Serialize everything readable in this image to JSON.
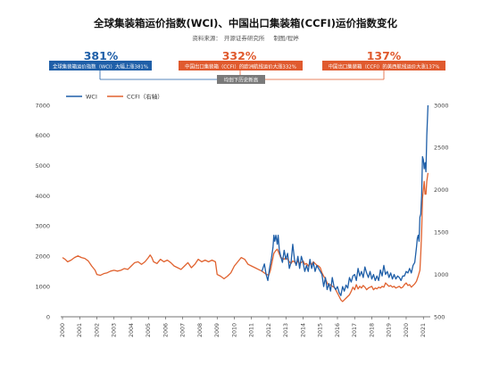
{
  "header": {
    "title": "全球集装箱运价指数(WCI)、中国出口集装箱(CCFI)运价指数变化",
    "source_label": "资料来源：",
    "source_org": "开源证券研究所",
    "author": "制图/程婷"
  },
  "callouts": [
    {
      "pct": "381%",
      "text": "全球集装箱运价指数（WCI）大幅上涨381%",
      "color": "#1f5fa8"
    },
    {
      "pct": "332%",
      "text": "中国出口集装箱（CCFI）的欧洲航线运价大涨332%",
      "color": "#e05a2e"
    },
    {
      "pct": "137%",
      "text": "中国出口集装箱（CCFI）的美西航线运价大涨137%",
      "color": "#e05a2e"
    }
  ],
  "bracket_label": "均创下历史新高",
  "colors": {
    "wci": "#1f5fa8",
    "ccfi": "#e0622f"
  },
  "chart_data": {
    "type": "line",
    "title": "全球集装箱运价指数(WCI)、中国出口集装箱(CCFI)运价指数变化",
    "x_ticks": [
      "2000",
      "2001",
      "2002",
      "2003",
      "2004",
      "2005",
      "2006",
      "2007",
      "2008",
      "2009",
      "2010",
      "2011",
      "2012",
      "2013",
      "2014",
      "2015",
      "2016",
      "2017",
      "2018",
      "2019",
      "2020",
      "2021"
    ],
    "xlim": [
      2000,
      2021.3
    ],
    "y_left": {
      "lim": [
        0,
        7000
      ],
      "ticks": [
        0,
        1000,
        2000,
        3000,
        4000,
        5000,
        6000,
        7000
      ]
    },
    "y_right": {
      "lim": [
        500,
        3000
      ],
      "ticks": [
        500,
        1000,
        1500,
        2000,
        2500,
        3000
      ]
    },
    "legend": {
      "position": "top-left"
    },
    "grid": false,
    "series": [
      {
        "name": "WCI",
        "axis": "left",
        "points": [
          [
            2011.6,
            1500
          ],
          [
            2011.75,
            1750
          ],
          [
            2011.85,
            1400
          ],
          [
            2011.95,
            1200
          ],
          [
            2012.05,
            1600
          ],
          [
            2012.15,
            1900
          ],
          [
            2012.25,
            2300
          ],
          [
            2012.3,
            2700
          ],
          [
            2012.35,
            2500
          ],
          [
            2012.42,
            2700
          ],
          [
            2012.5,
            2400
          ],
          [
            2012.55,
            2700
          ],
          [
            2012.62,
            2200
          ],
          [
            2012.7,
            2000
          ],
          [
            2012.8,
            1800
          ],
          [
            2012.9,
            2200
          ],
          [
            2013.0,
            1900
          ],
          [
            2013.1,
            2100
          ],
          [
            2013.2,
            1600
          ],
          [
            2013.3,
            1800
          ],
          [
            2013.4,
            2400
          ],
          [
            2013.5,
            1900
          ],
          [
            2013.6,
            1700
          ],
          [
            2013.7,
            2000
          ],
          [
            2013.8,
            1600
          ],
          [
            2013.9,
            2000
          ],
          [
            2014.0,
            1800
          ],
          [
            2014.1,
            1500
          ],
          [
            2014.2,
            1700
          ],
          [
            2014.3,
            1500
          ],
          [
            2014.4,
            1900
          ],
          [
            2014.5,
            1600
          ],
          [
            2014.6,
            1800
          ],
          [
            2014.7,
            1500
          ],
          [
            2014.8,
            1700
          ],
          [
            2014.9,
            1600
          ],
          [
            2015.0,
            1500
          ],
          [
            2015.1,
            1400
          ],
          [
            2015.2,
            1000
          ],
          [
            2015.3,
            1300
          ],
          [
            2015.4,
            900
          ],
          [
            2015.5,
            1100
          ],
          [
            2015.6,
            850
          ],
          [
            2015.7,
            1300
          ],
          [
            2015.8,
            1000
          ],
          [
            2015.9,
            900
          ],
          [
            2016.0,
            1000
          ],
          [
            2016.1,
            800
          ],
          [
            2016.2,
            700
          ],
          [
            2016.3,
            1000
          ],
          [
            2016.4,
            850
          ],
          [
            2016.5,
            1050
          ],
          [
            2016.6,
            950
          ],
          [
            2016.7,
            1300
          ],
          [
            2016.8,
            1150
          ],
          [
            2016.9,
            1350
          ],
          [
            2017.0,
            1400
          ],
          [
            2017.1,
            1200
          ],
          [
            2017.2,
            1600
          ],
          [
            2017.3,
            1350
          ],
          [
            2017.4,
            1500
          ],
          [
            2017.5,
            1300
          ],
          [
            2017.6,
            1650
          ],
          [
            2017.7,
            1450
          ],
          [
            2017.8,
            1300
          ],
          [
            2017.9,
            1500
          ],
          [
            2018.0,
            1250
          ],
          [
            2018.1,
            1400
          ],
          [
            2018.2,
            1200
          ],
          [
            2018.3,
            1350
          ],
          [
            2018.4,
            1200
          ],
          [
            2018.5,
            1550
          ],
          [
            2018.6,
            1350
          ],
          [
            2018.7,
            1700
          ],
          [
            2018.8,
            1400
          ],
          [
            2018.9,
            1500
          ],
          [
            2019.0,
            1300
          ],
          [
            2019.1,
            1450
          ],
          [
            2019.2,
            1250
          ],
          [
            2019.3,
            1400
          ],
          [
            2019.4,
            1250
          ],
          [
            2019.5,
            1350
          ],
          [
            2019.6,
            1300
          ],
          [
            2019.7,
            1200
          ],
          [
            2019.8,
            1350
          ],
          [
            2019.9,
            1350
          ],
          [
            2020.0,
            1500
          ],
          [
            2020.1,
            1450
          ],
          [
            2020.2,
            1600
          ],
          [
            2020.3,
            1450
          ],
          [
            2020.4,
            1700
          ],
          [
            2020.5,
            1800
          ],
          [
            2020.6,
            2300
          ],
          [
            2020.65,
            2600
          ],
          [
            2020.7,
            2700
          ],
          [
            2020.75,
            2500
          ],
          [
            2020.8,
            3300
          ],
          [
            2020.85,
            3400
          ],
          [
            2020.9,
            4000
          ],
          [
            2020.95,
            5300
          ],
          [
            2021.0,
            5200
          ],
          [
            2021.05,
            4900
          ],
          [
            2021.1,
            5100
          ],
          [
            2021.15,
            4800
          ],
          [
            2021.2,
            6000
          ],
          [
            2021.27,
            7000
          ]
        ]
      },
      {
        "name": "CCFI（右轴）",
        "axis": "right",
        "points": [
          [
            2000.0,
            1200
          ],
          [
            2000.15,
            1180
          ],
          [
            2000.3,
            1150
          ],
          [
            2000.5,
            1170
          ],
          [
            2000.7,
            1200
          ],
          [
            2000.9,
            1220
          ],
          [
            2001.1,
            1200
          ],
          [
            2001.3,
            1190
          ],
          [
            2001.5,
            1160
          ],
          [
            2001.7,
            1100
          ],
          [
            2001.9,
            1050
          ],
          [
            2002.0,
            1000
          ],
          [
            2002.2,
            990
          ],
          [
            2002.4,
            1010
          ],
          [
            2002.6,
            1020
          ],
          [
            2002.8,
            1040
          ],
          [
            2003.0,
            1050
          ],
          [
            2003.2,
            1040
          ],
          [
            2003.4,
            1050
          ],
          [
            2003.6,
            1070
          ],
          [
            2003.8,
            1060
          ],
          [
            2004.0,
            1100
          ],
          [
            2004.2,
            1140
          ],
          [
            2004.4,
            1150
          ],
          [
            2004.6,
            1120
          ],
          [
            2004.8,
            1150
          ],
          [
            2005.0,
            1200
          ],
          [
            2005.1,
            1230
          ],
          [
            2005.2,
            1200
          ],
          [
            2005.3,
            1150
          ],
          [
            2005.5,
            1130
          ],
          [
            2005.7,
            1180
          ],
          [
            2005.9,
            1150
          ],
          [
            2006.1,
            1170
          ],
          [
            2006.3,
            1140
          ],
          [
            2006.5,
            1100
          ],
          [
            2006.7,
            1080
          ],
          [
            2006.9,
            1060
          ],
          [
            2007.1,
            1100
          ],
          [
            2007.3,
            1140
          ],
          [
            2007.5,
            1080
          ],
          [
            2007.7,
            1120
          ],
          [
            2007.9,
            1180
          ],
          [
            2008.1,
            1150
          ],
          [
            2008.3,
            1170
          ],
          [
            2008.5,
            1150
          ],
          [
            2008.7,
            1170
          ],
          [
            2008.9,
            1150
          ],
          [
            2009.0,
            1000
          ],
          [
            2009.2,
            980
          ],
          [
            2009.4,
            950
          ],
          [
            2009.6,
            980
          ],
          [
            2009.8,
            1020
          ],
          [
            2010.0,
            1100
          ],
          [
            2010.2,
            1150
          ],
          [
            2010.4,
            1200
          ],
          [
            2010.6,
            1180
          ],
          [
            2010.8,
            1120
          ],
          [
            2011.0,
            1100
          ],
          [
            2011.2,
            1080
          ],
          [
            2011.4,
            1060
          ],
          [
            2011.6,
            1040
          ],
          [
            2011.8,
            1010
          ],
          [
            2012.0,
            990
          ],
          [
            2012.1,
            1050
          ],
          [
            2012.2,
            1150
          ],
          [
            2012.3,
            1250
          ],
          [
            2012.4,
            1280
          ],
          [
            2012.5,
            1300
          ],
          [
            2012.6,
            1250
          ],
          [
            2012.7,
            1200
          ],
          [
            2012.8,
            1190
          ],
          [
            2012.9,
            1180
          ],
          [
            2013.0,
            1200
          ],
          [
            2013.1,
            1180
          ],
          [
            2013.2,
            1150
          ],
          [
            2013.3,
            1130
          ],
          [
            2013.4,
            1160
          ],
          [
            2013.5,
            1150
          ],
          [
            2013.6,
            1120
          ],
          [
            2013.7,
            1160
          ],
          [
            2013.8,
            1130
          ],
          [
            2013.9,
            1140
          ],
          [
            2014.0,
            1160
          ],
          [
            2014.1,
            1120
          ],
          [
            2014.2,
            1130
          ],
          [
            2014.3,
            1100
          ],
          [
            2014.4,
            1130
          ],
          [
            2014.5,
            1120
          ],
          [
            2014.6,
            1150
          ],
          [
            2014.7,
            1130
          ],
          [
            2014.8,
            1110
          ],
          [
            2014.9,
            1100
          ],
          [
            2015.0,
            1080
          ],
          [
            2015.1,
            1020
          ],
          [
            2015.2,
            980
          ],
          [
            2015.3,
            950
          ],
          [
            2015.4,
            900
          ],
          [
            2015.5,
            870
          ],
          [
            2015.6,
            880
          ],
          [
            2015.7,
            860
          ],
          [
            2015.8,
            850
          ],
          [
            2015.9,
            820
          ],
          [
            2016.0,
            780
          ],
          [
            2016.1,
            740
          ],
          [
            2016.2,
            700
          ],
          [
            2016.3,
            680
          ],
          [
            2016.4,
            700
          ],
          [
            2016.5,
            720
          ],
          [
            2016.6,
            740
          ],
          [
            2016.7,
            760
          ],
          [
            2016.8,
            800
          ],
          [
            2016.9,
            850
          ],
          [
            2017.0,
            820
          ],
          [
            2017.1,
            880
          ],
          [
            2017.2,
            830
          ],
          [
            2017.3,
            860
          ],
          [
            2017.4,
            840
          ],
          [
            2017.5,
            870
          ],
          [
            2017.6,
            850
          ],
          [
            2017.7,
            820
          ],
          [
            2017.8,
            840
          ],
          [
            2017.9,
            850
          ],
          [
            2018.0,
            860
          ],
          [
            2018.1,
            820
          ],
          [
            2018.2,
            840
          ],
          [
            2018.3,
            830
          ],
          [
            2018.4,
            850
          ],
          [
            2018.5,
            840
          ],
          [
            2018.6,
            860
          ],
          [
            2018.7,
            850
          ],
          [
            2018.8,
            900
          ],
          [
            2018.9,
            880
          ],
          [
            2019.0,
            860
          ],
          [
            2019.1,
            870
          ],
          [
            2019.2,
            850
          ],
          [
            2019.3,
            860
          ],
          [
            2019.4,
            840
          ],
          [
            2019.5,
            850
          ],
          [
            2019.6,
            860
          ],
          [
            2019.7,
            840
          ],
          [
            2019.8,
            850
          ],
          [
            2019.9,
            880
          ],
          [
            2020.0,
            900
          ],
          [
            2020.1,
            870
          ],
          [
            2020.2,
            880
          ],
          [
            2020.3,
            850
          ],
          [
            2020.4,
            870
          ],
          [
            2020.5,
            890
          ],
          [
            2020.6,
            920
          ],
          [
            2020.7,
            980
          ],
          [
            2020.8,
            1050
          ],
          [
            2020.85,
            1250
          ],
          [
            2020.9,
            1500
          ],
          [
            2020.95,
            1900
          ],
          [
            2021.0,
            2000
          ],
          [
            2021.05,
            2100
          ],
          [
            2021.1,
            1950
          ],
          [
            2021.15,
            1950
          ],
          [
            2021.2,
            2100
          ],
          [
            2021.27,
            2200
          ]
        ]
      }
    ]
  }
}
